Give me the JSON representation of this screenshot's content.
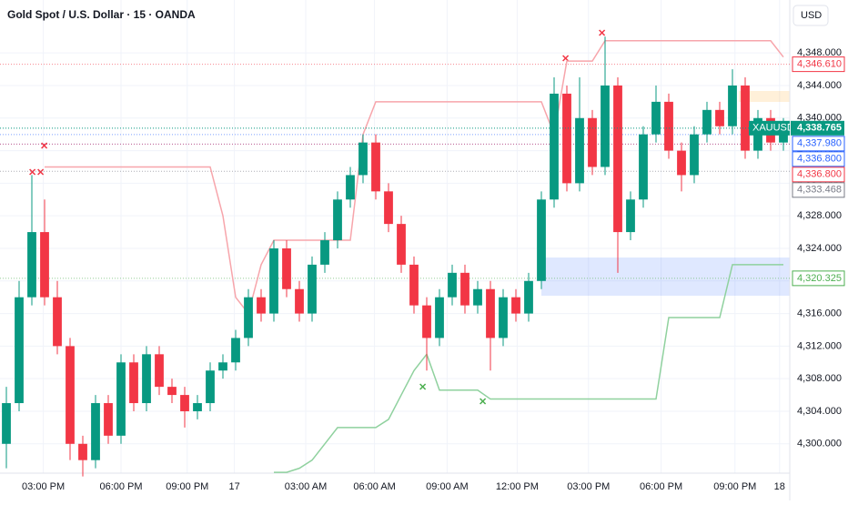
{
  "chart_data": {
    "type": "candlestick",
    "title": "Gold Spot / U.S. Dollar · 15 · OANDA",
    "currency": "USD",
    "xlim": [
      0,
      62
    ],
    "xticks": [
      {
        "value": 3.4,
        "label": "03:00 PM"
      },
      {
        "value": 9.5,
        "label": "06:00 PM"
      },
      {
        "value": 14.7,
        "label": "09:00 PM"
      },
      {
        "value": 18.4,
        "label": "17"
      },
      {
        "value": 24,
        "label": "03:00 AM"
      },
      {
        "value": 29.4,
        "label": "06:00 AM"
      },
      {
        "value": 35.1,
        "label": "09:00 AM"
      },
      {
        "value": 40.6,
        "label": "12:00 PM"
      },
      {
        "value": 46.2,
        "label": "03:00 PM"
      },
      {
        "value": 51.9,
        "label": "06:00 PM"
      },
      {
        "value": 57.7,
        "label": "09:00 PM"
      },
      {
        "value": 61.2,
        "label": "18"
      }
    ],
    "ylim": [
      4296.4,
      4354.5
    ],
    "yticks": [
      {
        "value": 4300,
        "label": "4,300.000"
      },
      {
        "value": 4304,
        "label": "4,304.000"
      },
      {
        "value": 4308,
        "label": "4,308.000"
      },
      {
        "value": 4312,
        "label": "4,312.000"
      },
      {
        "value": 4316,
        "label": "4,316.000"
      },
      {
        "value": 4320,
        "label": "4,320.000"
      },
      {
        "value": 4324,
        "label": "4,324.000"
      },
      {
        "value": 4328,
        "label": "4,328.000"
      },
      {
        "value": 4332,
        "label": "4,332.000"
      },
      {
        "value": 4336,
        "label": "4,336.000"
      },
      {
        "value": 4340,
        "label": "4,340.000"
      },
      {
        "value": 4344,
        "label": "4,344.000"
      },
      {
        "value": 4348,
        "label": "4,348.000"
      }
    ],
    "up_color": "#089981",
    "down_color": "#f23645",
    "open": [
      4300,
      4305,
      4318,
      4326,
      4318,
      4312,
      4300,
      4298,
      4305,
      4301,
      4310,
      4305,
      4311,
      4307,
      4306,
      4304,
      4305,
      4309,
      4310,
      4313,
      4318,
      4316,
      4324,
      4319,
      4316,
      4322,
      4325,
      4330,
      4333,
      4337,
      4331,
      4327,
      4322,
      4317,
      4313,
      4318,
      4321,
      4317,
      4319,
      4313,
      4318,
      4316,
      4320,
      4330,
      4343,
      4332,
      4340,
      4334,
      4344,
      4326,
      4330,
      4338,
      4342,
      4336,
      4333,
      4338,
      4341,
      4339,
      4344,
      4336,
      4340,
      4337
    ],
    "high": [
      4307,
      4320,
      4333,
      4330,
      4320,
      4313,
      4301,
      4306,
      4306,
      4311,
      4311,
      4312,
      4312,
      4308,
      4307,
      4306,
      4310,
      4311,
      4314,
      4319,
      4319,
      4325,
      4325,
      4320,
      4323,
      4326,
      4331,
      4334,
      4338,
      4338,
      4332,
      4328,
      4323,
      4318,
      4319,
      4322,
      4322,
      4320,
      4320,
      4319,
      4319,
      4321,
      4331,
      4345,
      4344,
      4345,
      4341,
      4350,
      4345,
      4331,
      4339,
      4344,
      4343,
      4337,
      4339,
      4342,
      4342,
      4346,
      4345,
      4341,
      4341,
      4340
    ],
    "low": [
      4297,
      4304,
      4317,
      4317,
      4311,
      4298,
      4296,
      4297,
      4300,
      4300,
      4304,
      4304,
      4306,
      4305,
      4302,
      4303,
      4304,
      4308,
      4309,
      4312,
      4315,
      4315,
      4318,
      4315,
      4315,
      4321,
      4324,
      4329,
      4332,
      4330,
      4326,
      4321,
      4316,
      4309,
      4312,
      4317,
      4316,
      4316,
      4309,
      4312,
      4315,
      4315,
      4319,
      4329,
      4331,
      4331,
      4333,
      4333,
      4321,
      4325,
      4329,
      4337,
      4335,
      4331,
      4332,
      4337,
      4338,
      4338,
      4335,
      4335,
      4336,
      4336
    ],
    "close": [
      4305,
      4318,
      4326,
      4318,
      4312,
      4300,
      4298,
      4305,
      4301,
      4310,
      4305,
      4311,
      4307,
      4306,
      4304,
      4305,
      4309,
      4310,
      4313,
      4318,
      4316,
      4324,
      4319,
      4316,
      4322,
      4325,
      4330,
      4333,
      4337,
      4331,
      4327,
      4322,
      4317,
      4313,
      4318,
      4321,
      4317,
      4319,
      4313,
      4318,
      4316,
      4320,
      4330,
      4343,
      4332,
      4340,
      4334,
      4344,
      4326,
      4330,
      4338,
      4342,
      4336,
      4333,
      4338,
      4341,
      4339,
      4344,
      4336,
      4340,
      4337,
      4338.765
    ],
    "series": [
      {
        "color": "#f7a5ab",
        "values": [
          null,
          null,
          null,
          4334,
          4334,
          4334,
          4334,
          4334,
          4334,
          4334,
          4334,
          4334,
          4334,
          4334,
          4334,
          4334,
          4334,
          4328,
          4318,
          4316,
          4322,
          4325,
          4325,
          4325,
          4325,
          4325,
          4325,
          4325,
          4338,
          4342,
          4342,
          4342,
          4342,
          4342,
          4342,
          4342,
          4342,
          4342,
          4342,
          4342,
          4342,
          4342,
          4342,
          4338,
          4347,
          4347,
          4347,
          4349.5,
          4349.5,
          4349.5,
          4349.5,
          4349.5,
          4349.5,
          4349.5,
          4349.5,
          4349.5,
          4349.5,
          4349.5,
          4349.5,
          4349.5,
          4349.5,
          4347.5
        ]
      },
      {
        "color": "#8fd19e",
        "values": [
          null,
          null,
          null,
          null,
          null,
          null,
          null,
          null,
          null,
          null,
          null,
          null,
          null,
          null,
          null,
          null,
          null,
          null,
          null,
          null,
          null,
          4296.5,
          4296.5,
          4297,
          4298,
          4300,
          4302,
          4302,
          4302,
          4302,
          4303,
          4306,
          4309,
          4311,
          4306.6,
          4306.6,
          4306.6,
          4306.6,
          4305.5,
          4305.5,
          4305.5,
          4305.5,
          4305.5,
          4305.5,
          4305.5,
          4305.5,
          4305.5,
          4305.5,
          4305.5,
          4305.5,
          4305.5,
          4305.5,
          4315.5,
          4315.5,
          4315.5,
          4315.5,
          4315.5,
          4322,
          4322,
          4322,
          4322,
          4322
        ]
      }
    ],
    "last_price": {
      "name": "XAUUSD",
      "value": 4338.765,
      "label": "4,338.765",
      "color": "#089981"
    },
    "levels": [
      {
        "value": 4346.61,
        "label": "4,346.610",
        "color": "#f23645"
      },
      {
        "value": 4337.98,
        "label": "4,337.980",
        "color": "#2962ff"
      },
      {
        "value": 4336.8,
        "label": "4,336.800",
        "color": "#2962ff"
      },
      {
        "value": 4336.8,
        "label": "4,336.800",
        "color": "#f23645"
      },
      {
        "value": 4333.468,
        "label": "4,333.468",
        "color": "#787b86"
      },
      {
        "value": 4320.325,
        "label": "4,320.325",
        "color": "#4caf50"
      }
    ]
  }
}
